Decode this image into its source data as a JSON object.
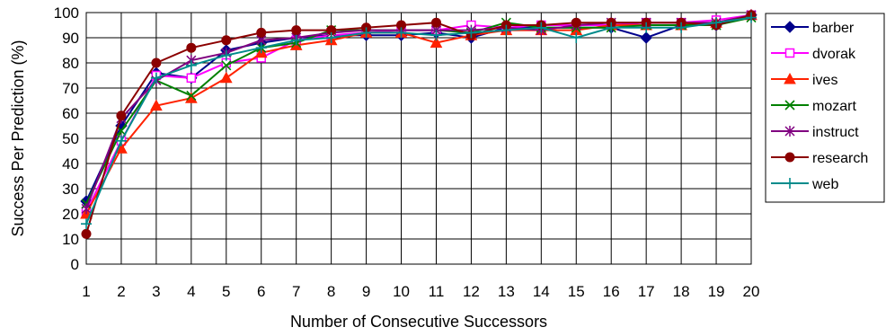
{
  "chart_data": {
    "type": "line",
    "xlabel": "Number of Consecutive Successors",
    "ylabel": "Success Per Prediction (%)",
    "x": [
      1,
      2,
      3,
      4,
      5,
      6,
      7,
      8,
      9,
      10,
      11,
      12,
      13,
      14,
      15,
      16,
      17,
      18,
      19,
      20
    ],
    "ylim": [
      0,
      100
    ],
    "yticks": [
      0,
      10,
      20,
      30,
      40,
      50,
      60,
      70,
      80,
      90,
      100
    ],
    "grid": true,
    "legend_position": "right",
    "series": [
      {
        "name": "barber",
        "color": "#00008B",
        "marker": "diamond",
        "values": [
          25,
          55,
          76,
          74,
          85,
          88,
          90,
          91,
          91,
          91,
          92,
          90,
          94,
          94,
          94,
          94,
          90,
          95,
          95,
          99
        ]
      },
      {
        "name": "dvorak",
        "color": "#FF00FF",
        "marker": "square",
        "values": [
          21,
          49,
          75,
          74,
          80,
          82,
          89,
          91,
          92,
          93,
          93,
          95,
          94,
          95,
          95,
          95,
          96,
          96,
          97,
          99
        ]
      },
      {
        "name": "ives",
        "color": "#FF2200",
        "marker": "triangle",
        "values": [
          20,
          46,
          63,
          66,
          74,
          84,
          87,
          89,
          92,
          92,
          88,
          91,
          93,
          93,
          93,
          95,
          95,
          95,
          96,
          99
        ]
      },
      {
        "name": "mozart",
        "color": "#008000",
        "marker": "x",
        "values": [
          24,
          53,
          73,
          67,
          79,
          86,
          88,
          93,
          93,
          93,
          93,
          92,
          96,
          94,
          94,
          94,
          95,
          95,
          95,
          98
        ]
      },
      {
        "name": "instruct",
        "color": "#800080",
        "marker": "star",
        "values": [
          22,
          58,
          73,
          81,
          84,
          89,
          90,
          92,
          93,
          93,
          93,
          93,
          94,
          93,
          95,
          96,
          96,
          96,
          96,
          99
        ]
      },
      {
        "name": "research",
        "color": "#8B0000",
        "marker": "circle",
        "values": [
          12,
          59,
          80,
          86,
          89,
          92,
          93,
          93,
          94,
          95,
          96,
          91,
          95,
          95,
          96,
          96,
          96,
          96,
          95,
          99
        ]
      },
      {
        "name": "web",
        "color": "#008B8B",
        "marker": "plus",
        "values": [
          16,
          49,
          74,
          79,
          83,
          86,
          89,
          90,
          92,
          92,
          91,
          92,
          93,
          94,
          90,
          94,
          94,
          94,
          96,
          98
        ]
      }
    ]
  }
}
